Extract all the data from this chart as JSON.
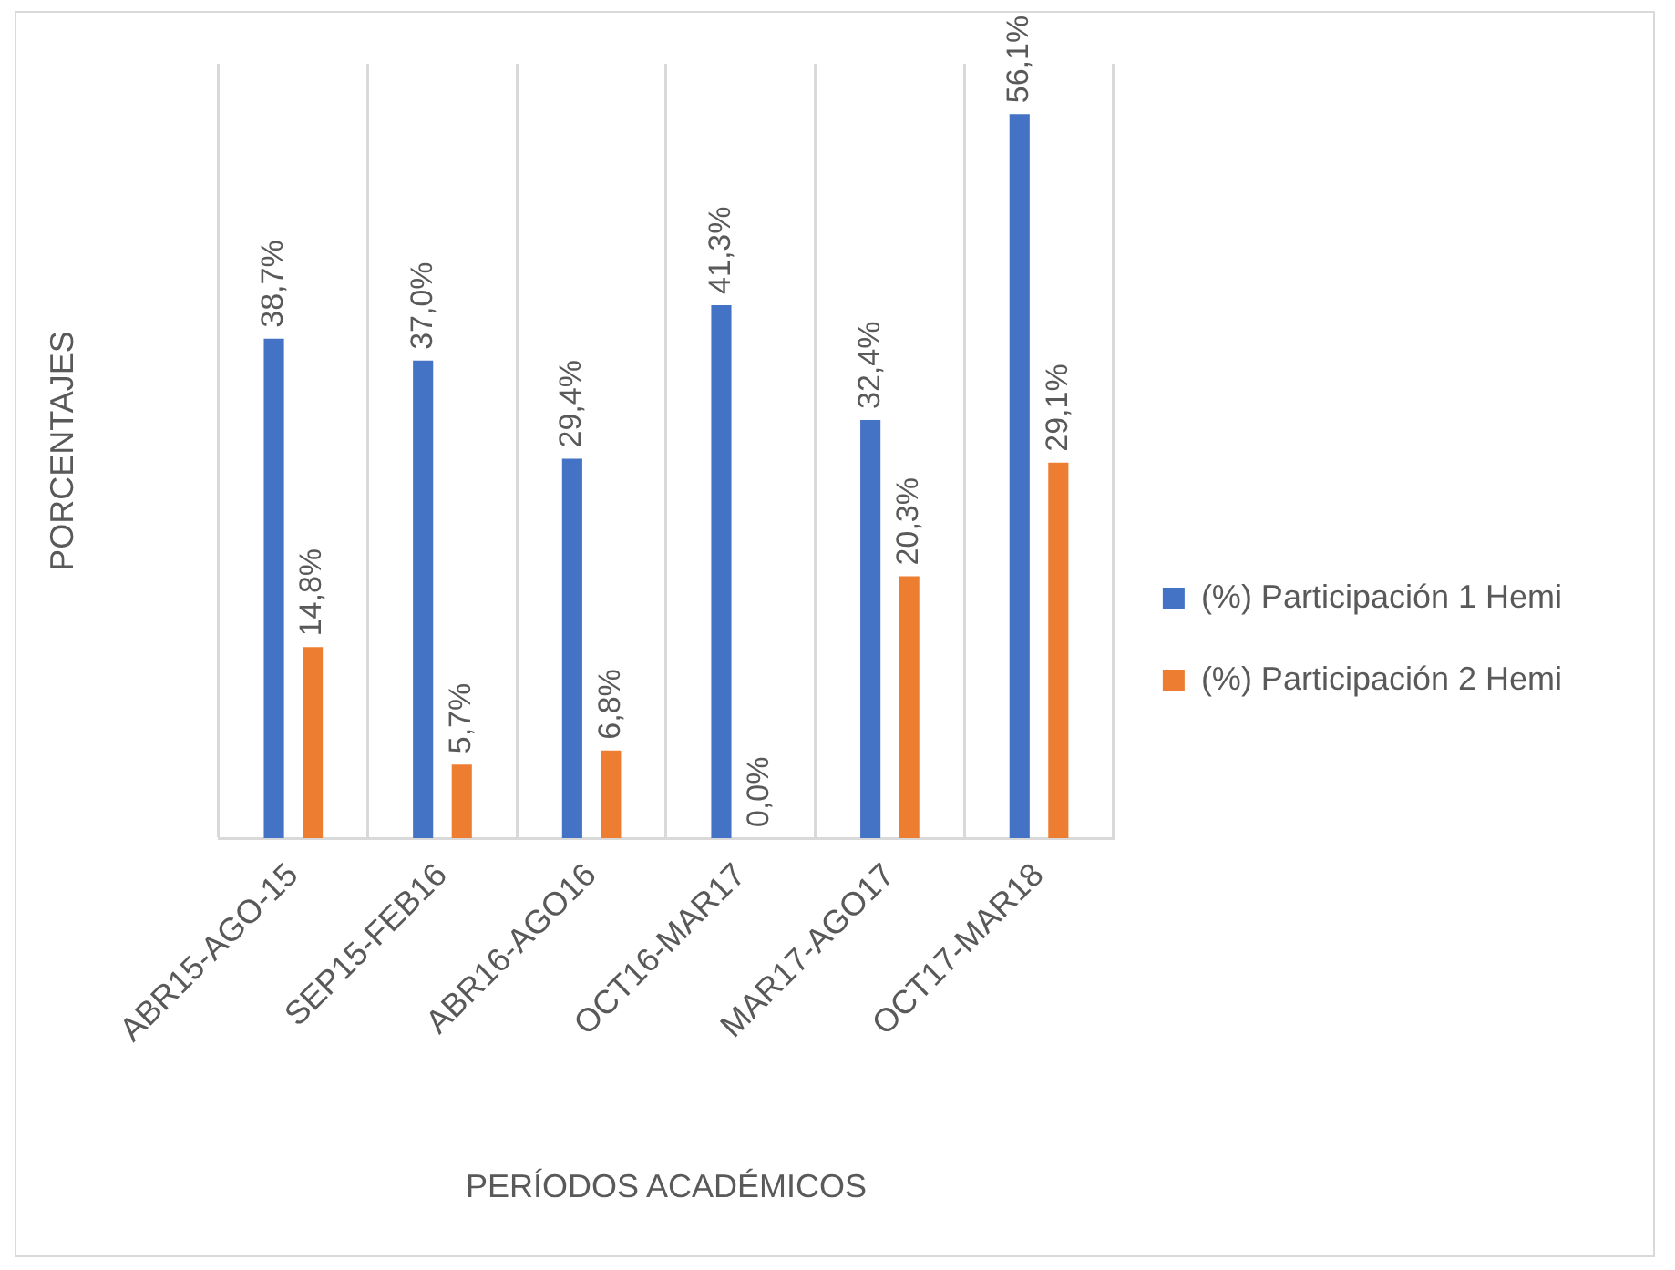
{
  "chart_data": {
    "type": "bar",
    "xlabel": "PERÍODOS ACADÉMICOS",
    "ylabel": "PORCENTAJES",
    "categories": [
      "ABR15-AGO-15",
      "SEP15-FEB16",
      "ABR16-AGO16",
      "OCT16-MAR17",
      "MAR17-AGO17",
      "OCT17-MAR18"
    ],
    "series": [
      {
        "name": "(%) Participación 1 Hemi",
        "color": "#4472c4",
        "values": [
          38.7,
          37.0,
          29.4,
          41.3,
          32.4,
          56.1
        ],
        "value_labels": [
          "38,7%",
          "37,0%",
          "29,4%",
          "41,3%",
          "32,4%",
          "56,1%"
        ]
      },
      {
        "name": "(%) Participación 2 Hemi",
        "color": "#ed7d31",
        "values": [
          14.8,
          5.7,
          6.8,
          0.0,
          20.3,
          29.1
        ],
        "value_labels": [
          "14,8%",
          "5,7%",
          "6,8%",
          "0,0%",
          "20,3%",
          "29,1%"
        ]
      }
    ],
    "ylim": [
      0,
      60
    ],
    "tick_labels": "x",
    "grid": "x",
    "legend": "right"
  }
}
